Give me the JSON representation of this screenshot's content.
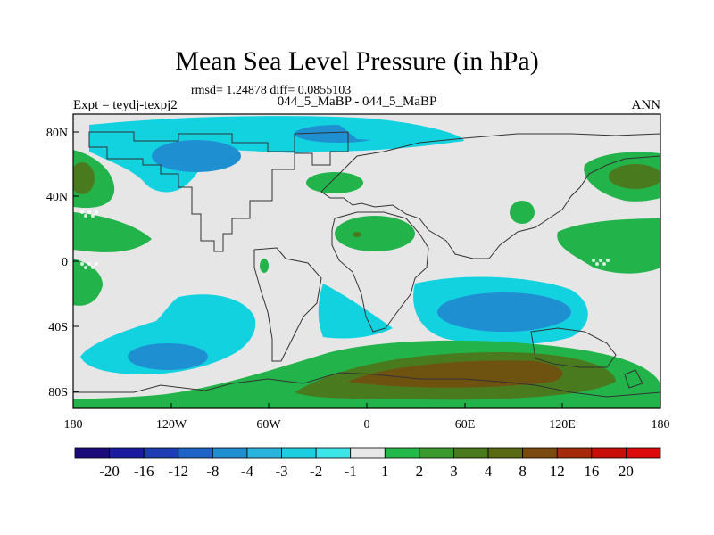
{
  "title": "Mean Sea Level Pressure (in hPa)",
  "stats_line": "rmsd= 1.24878 diff= 0.0855103",
  "experiment_label": "Expt = teydj-texpj2",
  "experiment_name": "044_5_MaBP - 044_5_MaBP",
  "season": "ANN",
  "map": {
    "lon_ticks": [
      "180",
      "120W",
      "60W",
      "0",
      "60E",
      "120E",
      "180"
    ],
    "lat_ticks": [
      "80N",
      "40N",
      "0",
      "40S",
      "80S"
    ]
  },
  "colorbar": {
    "levels": [
      "-20",
      "-16",
      "-12",
      "-8",
      "-4",
      "-3",
      "-2",
      "-1",
      "1",
      "2",
      "3",
      "4",
      "8",
      "12",
      "16",
      "20"
    ],
    "colors": [
      "#1a0a7a",
      "#1a1aa0",
      "#1e3cb4",
      "#1e64c8",
      "#1e90d2",
      "#28b4dc",
      "#1ccfe0",
      "#3ce6e6",
      "#e8e8e8",
      "#22b84a",
      "#3a9a2e",
      "#4a7a1e",
      "#5a6a14",
      "#7a4a10",
      "#a42a0a",
      "#c80e06",
      "#dc0a0a"
    ]
  },
  "palette": {
    "neutral": "#e6e6e6",
    "cyan": "#12d2e0",
    "blue": "#1e90d2",
    "green": "#22b44a",
    "darkgreen": "#4a7a1e",
    "brown": "#6e5210"
  }
}
